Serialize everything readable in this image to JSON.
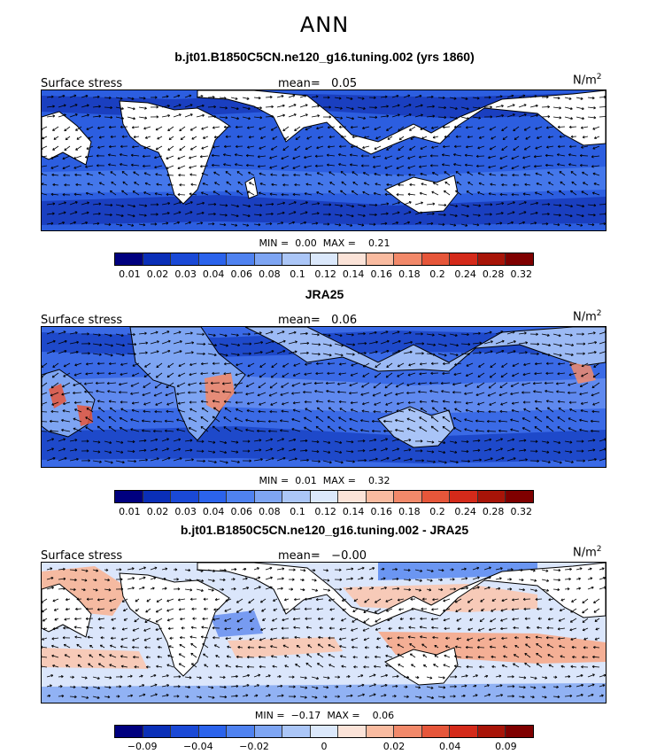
{
  "figure": {
    "title": "ANN"
  },
  "colors": {
    "ocean_low": "#2a56d6",
    "land": "#ffffff",
    "palette": [
      "#00007f",
      "#0a2fb8",
      "#1a49d6",
      "#2b63ec",
      "#4f82f0",
      "#7ea5f3",
      "#abc6f7",
      "#dbe8fb",
      "#fbe3d8",
      "#f9bba0",
      "#f2896a",
      "#e6563a",
      "#d42a1a",
      "#a81408",
      "#7f0000"
    ]
  },
  "panels": [
    {
      "title": "b.jt01.B1850C5CN.ne120_g16.tuning.002 (yrs 1860)",
      "variable": "Surface stress",
      "mean_label": "mean=",
      "mean_value": "0.05",
      "units": "N/m",
      "units_exp": "2",
      "min_label": "MIN =",
      "min_value": "0.00",
      "max_label": "MAX =",
      "max_value": "0.21",
      "colorbar_ticks": [
        "0.01",
        "0.02",
        "0.03",
        "0.04",
        "0.06",
        "0.08",
        "0.1",
        "0.12",
        "0.14",
        "0.16",
        "0.18",
        "0.2",
        "0.24",
        "0.28",
        "0.32"
      ]
    },
    {
      "title": "JRA25",
      "variable": "Surface stress",
      "mean_label": "mean=",
      "mean_value": "0.06",
      "units": "N/m",
      "units_exp": "2",
      "min_label": "MIN =",
      "min_value": "0.01",
      "max_label": "MAX =",
      "max_value": "0.32",
      "colorbar_ticks": [
        "0.01",
        "0.02",
        "0.03",
        "0.04",
        "0.06",
        "0.08",
        "0.1",
        "0.12",
        "0.14",
        "0.16",
        "0.18",
        "0.2",
        "0.24",
        "0.28",
        "0.32"
      ]
    },
    {
      "title": "b.jt01.B1850C5CN.ne120_g16.tuning.002 - JRA25",
      "variable": "Surface stress",
      "mean_label": "mean=",
      "mean_value": "−0.00",
      "units": "N/m",
      "units_exp": "2",
      "min_label": "MIN =",
      "min_value": "−0.17",
      "max_label": "MAX =",
      "max_value": "0.06",
      "colorbar_ticks": [
        "−0.09",
        "−0.04",
        "−0.02",
        "0",
        "0.02",
        "0.04",
        "0.09"
      ]
    }
  ],
  "chart_data": [
    {
      "type": "heatmap",
      "title": "b.jt01.B1850C5CN.ne120_g16.tuning.002 (yrs 1860)",
      "variable": "Surface stress",
      "units": "N/m2",
      "mean": 0.05,
      "min": 0.0,
      "max": 0.21,
      "contour_levels": [
        0.01,
        0.02,
        0.03,
        0.04,
        0.06,
        0.08,
        0.1,
        0.12,
        0.14,
        0.16,
        0.18,
        0.2,
        0.24,
        0.28,
        0.32
      ],
      "overlay": "wind stress vectors"
    },
    {
      "type": "heatmap",
      "title": "JRA25",
      "variable": "Surface stress",
      "units": "N/m2",
      "mean": 0.06,
      "min": 0.01,
      "max": 0.32,
      "contour_levels": [
        0.01,
        0.02,
        0.03,
        0.04,
        0.06,
        0.08,
        0.1,
        0.12,
        0.14,
        0.16,
        0.18,
        0.2,
        0.24,
        0.28,
        0.32
      ],
      "overlay": "wind stress vectors"
    },
    {
      "type": "heatmap",
      "title": "b.jt01.B1850C5CN.ne120_g16.tuning.002 - JRA25",
      "variable": "Surface stress",
      "units": "N/m2",
      "mean": -0.0,
      "min": -0.17,
      "max": 0.06,
      "contour_levels": [
        -0.09,
        -0.04,
        -0.02,
        0,
        0.02,
        0.04,
        0.09
      ],
      "overlay": "wind stress difference vectors"
    }
  ]
}
